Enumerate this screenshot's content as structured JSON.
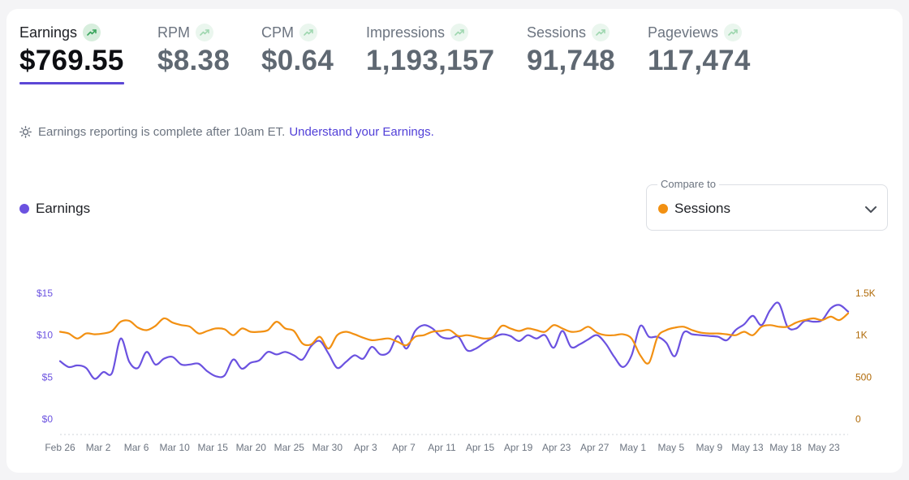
{
  "metrics": [
    {
      "label": "Earnings",
      "value": "$769.55",
      "active": true
    },
    {
      "label": "RPM",
      "value": "$8.38",
      "active": false
    },
    {
      "label": "CPM",
      "value": "$0.64",
      "active": false
    },
    {
      "label": "Impressions",
      "value": "1,193,157",
      "active": false
    },
    {
      "label": "Sessions",
      "value": "91,748",
      "active": false
    },
    {
      "label": "Pageviews",
      "value": "117,474",
      "active": false
    }
  ],
  "notice": {
    "text": "Earnings reporting is complete after 10am ET.",
    "link": "Understand your Earnings."
  },
  "legend": {
    "label": "Earnings",
    "color": "#6b52e0"
  },
  "compare": {
    "label": "Compare to",
    "value": "Sessions",
    "color": "#f29012"
  },
  "icons": {
    "trend": "trending-up-icon",
    "sun": "sun-icon",
    "chevron": "chevron-down-icon"
  },
  "colors": {
    "accent": "#5c47d6",
    "earnings": "#6b52e0",
    "sessions": "#f29012",
    "trend_green": "#3aa55d"
  },
  "chart_data": {
    "type": "line",
    "x_tick_labels": [
      "Feb 26",
      "Mar 2",
      "Mar 6",
      "Mar 10",
      "Mar 15",
      "Mar 20",
      "Mar 25",
      "Mar 30",
      "Apr 3",
      "Apr 7",
      "Apr 11",
      "Apr 15",
      "Apr 19",
      "Apr 23",
      "Apr 27",
      "May 1",
      "May 5",
      "May 9",
      "May 13",
      "May 18",
      "May 23"
    ],
    "y_left": {
      "ticks": [
        "$0",
        "$5",
        "$10",
        "$15"
      ],
      "values": [
        0,
        5,
        10,
        15
      ],
      "min": 0,
      "max": 15
    },
    "y_right": {
      "ticks": [
        "0",
        "500",
        "1K",
        "1.5K"
      ],
      "values": [
        0,
        500,
        1000,
        1500
      ],
      "min": 0,
      "max": 1500
    },
    "series": [
      {
        "name": "Earnings",
        "axis": "left",
        "color": "#6b52e0",
        "values": [
          6.9,
          6.2,
          6.4,
          6.1,
          4.8,
          5.6,
          5.5,
          9.6,
          6.8,
          6.1,
          8.0,
          6.5,
          7.2,
          7.4,
          6.5,
          6.5,
          6.6,
          5.7,
          5.1,
          5.2,
          7.1,
          6.0,
          6.7,
          7.0,
          8.0,
          7.7,
          8.0,
          7.6,
          7.1,
          8.7,
          9.3,
          7.8,
          6.1,
          6.8,
          7.6,
          7.2,
          8.6,
          7.7,
          8.0,
          9.9,
          8.4,
          10.5,
          11.2,
          10.8,
          9.8,
          9.6,
          9.8,
          8.2,
          8.4,
          9.1,
          9.7,
          10.1,
          9.9,
          9.3,
          10.0,
          9.6,
          10.0,
          8.5,
          10.5,
          8.6,
          8.9,
          9.5,
          10.0,
          9.0,
          7.4,
          6.2,
          7.6,
          11.1,
          9.8,
          9.8,
          9.1,
          7.5,
          10.3,
          10.1,
          10.0,
          9.9,
          9.8,
          9.4,
          10.6,
          11.3,
          12.3,
          11.2,
          13.0,
          13.8,
          11.0,
          10.8,
          11.7,
          11.6,
          11.8,
          13.2,
          13.6,
          12.8
        ]
      },
      {
        "name": "Sessions",
        "axis": "right",
        "color": "#f29012",
        "values": [
          1040,
          1020,
          960,
          1020,
          1010,
          1020,
          1050,
          1160,
          1170,
          1090,
          1060,
          1110,
          1200,
          1150,
          1120,
          1100,
          1020,
          1050,
          1080,
          1070,
          1000,
          1080,
          1040,
          1040,
          1060,
          1160,
          1080,
          1050,
          900,
          890,
          980,
          840,
          1000,
          1040,
          1010,
          970,
          940,
          950,
          960,
          920,
          880,
          980,
          1000,
          1040,
          1050,
          1060,
          990,
          1000,
          980,
          960,
          980,
          1110,
          1080,
          1050,
          1080,
          1060,
          1040,
          1120,
          1080,
          1040,
          1050,
          1100,
          1030,
          1000,
          1000,
          1010,
          960,
          760,
          670,
          980,
          1060,
          1090,
          1100,
          1060,
          1030,
          1020,
          1020,
          1010,
          1000,
          1040,
          1000,
          1100,
          1120,
          1100,
          1100,
          1150,
          1180,
          1200,
          1180,
          1220,
          1180,
          1260
        ]
      }
    ],
    "grid": false,
    "legend_position": "top-left"
  }
}
